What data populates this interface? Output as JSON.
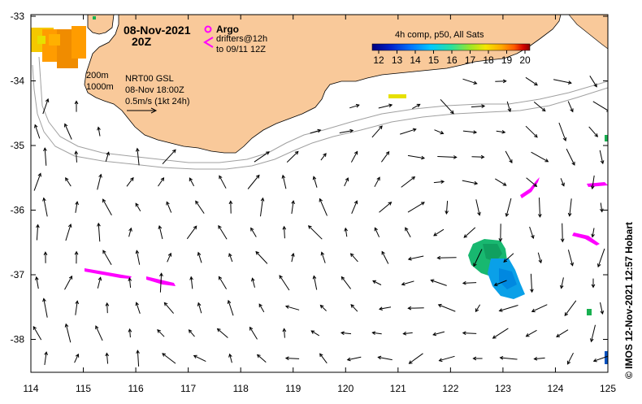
{
  "map": {
    "date_title": "08-Nov-2021",
    "time_title": "20Z",
    "argo_label": "Argo",
    "drifters_label": "drifters@12h",
    "drifters_to_label": "to 09/11 12Z",
    "isobath_200": "200m",
    "isobath_1000": "1000m",
    "product_line1": "NRT00 GSL",
    "product_line2": "08-Nov 18:00Z",
    "vector_scale_label": "0.5m/s (1kt 24h)",
    "colorbar_title": "4h comp, p50, All Sats",
    "colorbar_ticks": [
      "12",
      "13",
      "14",
      "15",
      "16",
      "17",
      "18",
      "19",
      "20"
    ],
    "colorbar_colors": [
      "#00007f",
      "#0022cc",
      "#0077ff",
      "#00c8ff",
      "#28e0a0",
      "#9be628",
      "#f5e600",
      "#ffa800",
      "#ff5a00",
      "#d20000",
      "#8a0000"
    ],
    "x_ticks": [
      "114",
      "115",
      "116",
      "117",
      "118",
      "119",
      "120",
      "121",
      "122",
      "123",
      "124",
      "125"
    ],
    "y_ticks": [
      "-33",
      "-34",
      "-35",
      "-36",
      "-37",
      "-38"
    ],
    "credit": "© IMOS 12-Nov-2021 12:57 Hobart",
    "land_color": "#f9c99a",
    "drifter_color": "#ff00ff",
    "isobath_color": "#a0a0a0"
  }
}
